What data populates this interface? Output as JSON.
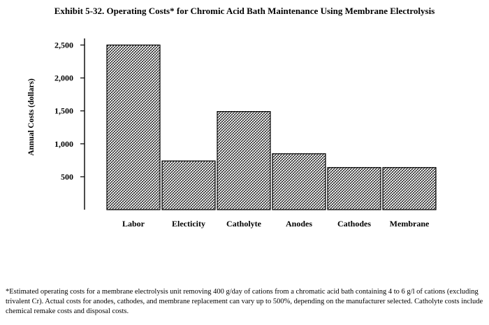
{
  "chart_data": {
    "type": "bar",
    "title": "Exhibit 5-32. Operating Costs* for Chromic Acid Bath Maintenance Using Membrane Electrolysis",
    "ylabel": "Annual Costs (dollars)",
    "xlabel": "",
    "categories": [
      "Labor",
      "Electicity",
      "Catholyte",
      "Anodes",
      "Cathodes",
      "Membrane"
    ],
    "values": [
      2500,
      740,
      1490,
      850,
      640,
      640
    ],
    "yticks": [
      500,
      1000,
      1500,
      2000,
      2500
    ],
    "ytick_labels": [
      "500",
      "1,000",
      "1,500",
      "2,000",
      "2,500"
    ],
    "ylim": [
      0,
      2600
    ],
    "grid": false,
    "bar_fill": "crosshatch"
  },
  "footnote": "*Estimated operating costs for a membrane electrolysis unit removing 400 g/day of cations from a chromatic acid bath containing 4 to 6 g/l of cations (excluding trivalent Cr).  Actual costs for anodes, cathodes, and membrane replacement can vary up to 500%, depending on the manufacturer selected.  Catholyte costs include chemical remake costs and disposal costs."
}
